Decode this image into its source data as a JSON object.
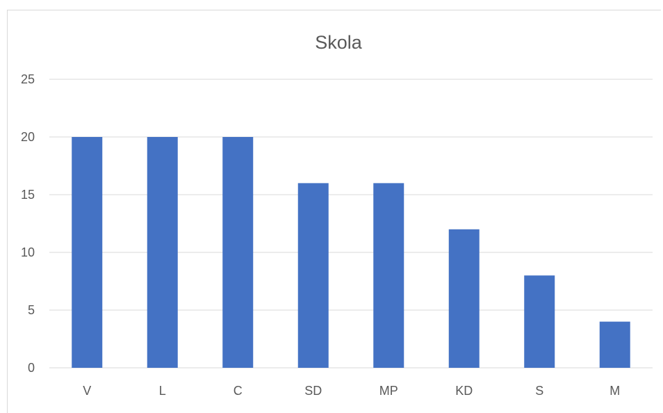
{
  "chart_data": {
    "type": "bar",
    "title": "Skola",
    "categories": [
      "V",
      "L",
      "C",
      "SD",
      "MP",
      "KD",
      "S",
      "M"
    ],
    "values": [
      20,
      20,
      20,
      16,
      16,
      12,
      8,
      4
    ],
    "ylim": [
      0,
      25
    ],
    "yticks": [
      "0",
      "5",
      "10",
      "15",
      "20",
      "25"
    ],
    "xlabel": "",
    "ylabel": "",
    "grid": true,
    "legend": "none",
    "bar_color": "#4472c4"
  }
}
